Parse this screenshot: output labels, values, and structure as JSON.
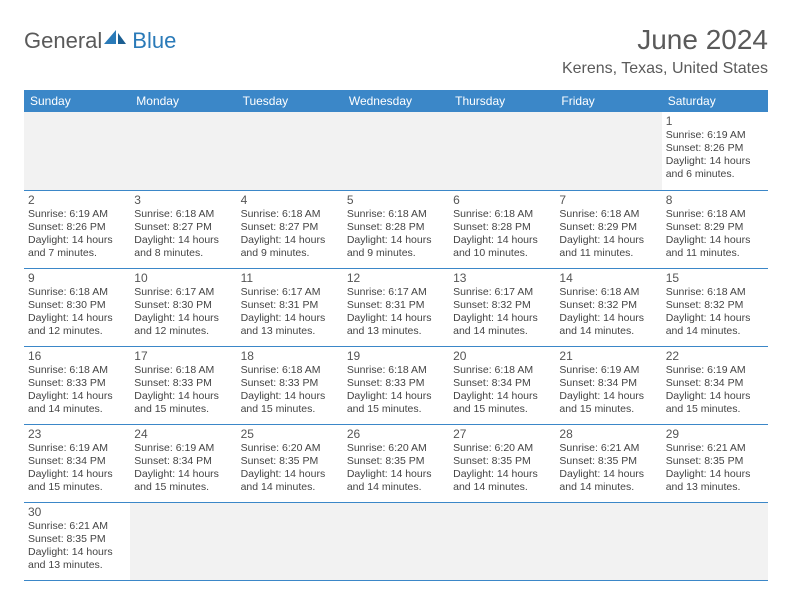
{
  "logo": {
    "general": "General",
    "blue": "Blue"
  },
  "title": "June 2024",
  "location": "Kerens, Texas, United States",
  "colors": {
    "header_bg": "#3b87c8",
    "header_text": "#ffffff",
    "border": "#3b87c8",
    "blank_bg": "#f2f2f2",
    "text": "#444444",
    "title_text": "#5a5a5a",
    "logo_blue": "#2a7ab8"
  },
  "days": [
    "Sunday",
    "Monday",
    "Tuesday",
    "Wednesday",
    "Thursday",
    "Friday",
    "Saturday"
  ],
  "weeks": [
    [
      null,
      null,
      null,
      null,
      null,
      null,
      {
        "n": "1",
        "sr": "Sunrise: 6:19 AM",
        "ss": "Sunset: 8:26 PM",
        "d1": "Daylight: 14 hours",
        "d2": "and 6 minutes."
      }
    ],
    [
      {
        "n": "2",
        "sr": "Sunrise: 6:19 AM",
        "ss": "Sunset: 8:26 PM",
        "d1": "Daylight: 14 hours",
        "d2": "and 7 minutes."
      },
      {
        "n": "3",
        "sr": "Sunrise: 6:18 AM",
        "ss": "Sunset: 8:27 PM",
        "d1": "Daylight: 14 hours",
        "d2": "and 8 minutes."
      },
      {
        "n": "4",
        "sr": "Sunrise: 6:18 AM",
        "ss": "Sunset: 8:27 PM",
        "d1": "Daylight: 14 hours",
        "d2": "and 9 minutes."
      },
      {
        "n": "5",
        "sr": "Sunrise: 6:18 AM",
        "ss": "Sunset: 8:28 PM",
        "d1": "Daylight: 14 hours",
        "d2": "and 9 minutes."
      },
      {
        "n": "6",
        "sr": "Sunrise: 6:18 AM",
        "ss": "Sunset: 8:28 PM",
        "d1": "Daylight: 14 hours",
        "d2": "and 10 minutes."
      },
      {
        "n": "7",
        "sr": "Sunrise: 6:18 AM",
        "ss": "Sunset: 8:29 PM",
        "d1": "Daylight: 14 hours",
        "d2": "and 11 minutes."
      },
      {
        "n": "8",
        "sr": "Sunrise: 6:18 AM",
        "ss": "Sunset: 8:29 PM",
        "d1": "Daylight: 14 hours",
        "d2": "and 11 minutes."
      }
    ],
    [
      {
        "n": "9",
        "sr": "Sunrise: 6:18 AM",
        "ss": "Sunset: 8:30 PM",
        "d1": "Daylight: 14 hours",
        "d2": "and 12 minutes."
      },
      {
        "n": "10",
        "sr": "Sunrise: 6:17 AM",
        "ss": "Sunset: 8:30 PM",
        "d1": "Daylight: 14 hours",
        "d2": "and 12 minutes."
      },
      {
        "n": "11",
        "sr": "Sunrise: 6:17 AM",
        "ss": "Sunset: 8:31 PM",
        "d1": "Daylight: 14 hours",
        "d2": "and 13 minutes."
      },
      {
        "n": "12",
        "sr": "Sunrise: 6:17 AM",
        "ss": "Sunset: 8:31 PM",
        "d1": "Daylight: 14 hours",
        "d2": "and 13 minutes."
      },
      {
        "n": "13",
        "sr": "Sunrise: 6:17 AM",
        "ss": "Sunset: 8:32 PM",
        "d1": "Daylight: 14 hours",
        "d2": "and 14 minutes."
      },
      {
        "n": "14",
        "sr": "Sunrise: 6:18 AM",
        "ss": "Sunset: 8:32 PM",
        "d1": "Daylight: 14 hours",
        "d2": "and 14 minutes."
      },
      {
        "n": "15",
        "sr": "Sunrise: 6:18 AM",
        "ss": "Sunset: 8:32 PM",
        "d1": "Daylight: 14 hours",
        "d2": "and 14 minutes."
      }
    ],
    [
      {
        "n": "16",
        "sr": "Sunrise: 6:18 AM",
        "ss": "Sunset: 8:33 PM",
        "d1": "Daylight: 14 hours",
        "d2": "and 14 minutes."
      },
      {
        "n": "17",
        "sr": "Sunrise: 6:18 AM",
        "ss": "Sunset: 8:33 PM",
        "d1": "Daylight: 14 hours",
        "d2": "and 15 minutes."
      },
      {
        "n": "18",
        "sr": "Sunrise: 6:18 AM",
        "ss": "Sunset: 8:33 PM",
        "d1": "Daylight: 14 hours",
        "d2": "and 15 minutes."
      },
      {
        "n": "19",
        "sr": "Sunrise: 6:18 AM",
        "ss": "Sunset: 8:33 PM",
        "d1": "Daylight: 14 hours",
        "d2": "and 15 minutes."
      },
      {
        "n": "20",
        "sr": "Sunrise: 6:18 AM",
        "ss": "Sunset: 8:34 PM",
        "d1": "Daylight: 14 hours",
        "d2": "and 15 minutes."
      },
      {
        "n": "21",
        "sr": "Sunrise: 6:19 AM",
        "ss": "Sunset: 8:34 PM",
        "d1": "Daylight: 14 hours",
        "d2": "and 15 minutes."
      },
      {
        "n": "22",
        "sr": "Sunrise: 6:19 AM",
        "ss": "Sunset: 8:34 PM",
        "d1": "Daylight: 14 hours",
        "d2": "and 15 minutes."
      }
    ],
    [
      {
        "n": "23",
        "sr": "Sunrise: 6:19 AM",
        "ss": "Sunset: 8:34 PM",
        "d1": "Daylight: 14 hours",
        "d2": "and 15 minutes."
      },
      {
        "n": "24",
        "sr": "Sunrise: 6:19 AM",
        "ss": "Sunset: 8:34 PM",
        "d1": "Daylight: 14 hours",
        "d2": "and 15 minutes."
      },
      {
        "n": "25",
        "sr": "Sunrise: 6:20 AM",
        "ss": "Sunset: 8:35 PM",
        "d1": "Daylight: 14 hours",
        "d2": "and 14 minutes."
      },
      {
        "n": "26",
        "sr": "Sunrise: 6:20 AM",
        "ss": "Sunset: 8:35 PM",
        "d1": "Daylight: 14 hours",
        "d2": "and 14 minutes."
      },
      {
        "n": "27",
        "sr": "Sunrise: 6:20 AM",
        "ss": "Sunset: 8:35 PM",
        "d1": "Daylight: 14 hours",
        "d2": "and 14 minutes."
      },
      {
        "n": "28",
        "sr": "Sunrise: 6:21 AM",
        "ss": "Sunset: 8:35 PM",
        "d1": "Daylight: 14 hours",
        "d2": "and 14 minutes."
      },
      {
        "n": "29",
        "sr": "Sunrise: 6:21 AM",
        "ss": "Sunset: 8:35 PM",
        "d1": "Daylight: 14 hours",
        "d2": "and 13 minutes."
      }
    ],
    [
      {
        "n": "30",
        "sr": "Sunrise: 6:21 AM",
        "ss": "Sunset: 8:35 PM",
        "d1": "Daylight: 14 hours",
        "d2": "and 13 minutes."
      },
      null,
      null,
      null,
      null,
      null,
      null
    ]
  ]
}
